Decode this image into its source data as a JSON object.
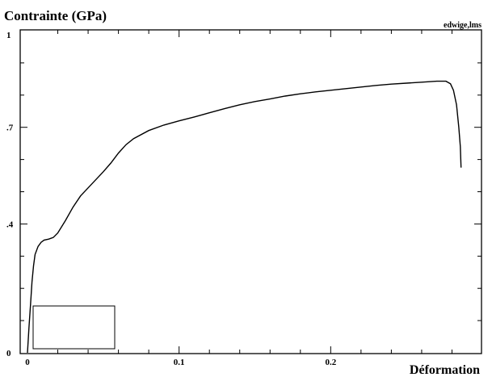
{
  "chart_data": {
    "type": "line",
    "title": "",
    "ylabel": "Contrainte (GPa)",
    "xlabel": "Déformation",
    "annotation": "edwige,lms",
    "xlim": [
      0,
      0.3
    ],
    "ylim": [
      0,
      1
    ],
    "x_ticks": [
      {
        "value": 0,
        "label": "0"
      },
      {
        "value": 0.1,
        "label": "0.1"
      },
      {
        "value": 0.2,
        "label": "0.2"
      }
    ],
    "y_ticks": [
      {
        "value": 0,
        "label": "0"
      },
      {
        "value": 0.4,
        "label": ".4"
      },
      {
        "value": 0.7,
        "label": ".7"
      },
      {
        "value": 1,
        "label": "1"
      }
    ],
    "grid": false,
    "series": [
      {
        "points": [
          [
            0.0,
            0.0
          ],
          [
            0.001,
            0.08
          ],
          [
            0.002,
            0.15
          ],
          [
            0.003,
            0.22
          ],
          [
            0.004,
            0.27
          ],
          [
            0.005,
            0.305
          ],
          [
            0.007,
            0.33
          ],
          [
            0.009,
            0.343
          ],
          [
            0.011,
            0.35
          ],
          [
            0.014,
            0.353
          ],
          [
            0.017,
            0.358
          ],
          [
            0.02,
            0.372
          ],
          [
            0.025,
            0.41
          ],
          [
            0.03,
            0.452
          ],
          [
            0.035,
            0.487
          ],
          [
            0.04,
            0.512
          ],
          [
            0.045,
            0.537
          ],
          [
            0.05,
            0.562
          ],
          [
            0.055,
            0.589
          ],
          [
            0.06,
            0.62
          ],
          [
            0.065,
            0.646
          ],
          [
            0.07,
            0.665
          ],
          [
            0.08,
            0.69
          ],
          [
            0.09,
            0.707
          ],
          [
            0.1,
            0.72
          ],
          [
            0.11,
            0.732
          ],
          [
            0.12,
            0.745
          ],
          [
            0.13,
            0.758
          ],
          [
            0.14,
            0.77
          ],
          [
            0.15,
            0.78
          ],
          [
            0.16,
            0.788
          ],
          [
            0.17,
            0.797
          ],
          [
            0.18,
            0.804
          ],
          [
            0.19,
            0.81
          ],
          [
            0.2,
            0.815
          ],
          [
            0.21,
            0.82
          ],
          [
            0.22,
            0.825
          ],
          [
            0.23,
            0.83
          ],
          [
            0.24,
            0.834
          ],
          [
            0.25,
            0.837
          ],
          [
            0.26,
            0.84
          ],
          [
            0.27,
            0.843
          ],
          [
            0.276,
            0.843
          ],
          [
            0.279,
            0.835
          ],
          [
            0.281,
            0.815
          ],
          [
            0.283,
            0.77
          ],
          [
            0.2845,
            0.7
          ],
          [
            0.2855,
            0.64
          ],
          [
            0.286,
            0.575
          ]
        ]
      }
    ]
  }
}
